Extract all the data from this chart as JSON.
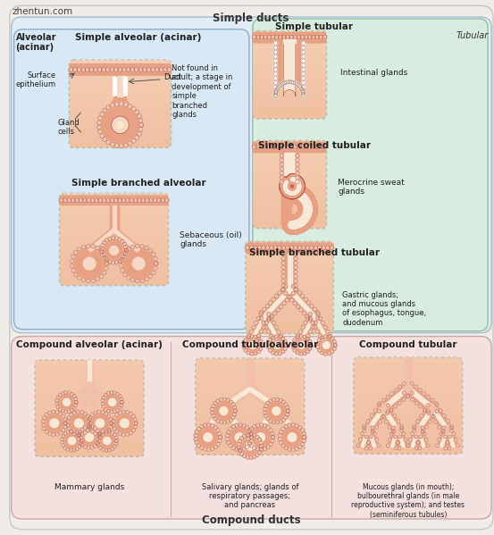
{
  "title": "Simple ducts",
  "title_bottom": "Compound ducts",
  "watermark": "zhentun.com",
  "bg_color": "#f0ede8",
  "top_section_bg": "#e2ecf5",
  "top_left_bg": "#d8e8f5",
  "top_right_bg": "#d8ecdf",
  "bottom_section_bg": "#f5e0e0",
  "tubular_label": "Tubular",
  "alveolar_label": "Alveolar\n(acinar)",
  "sections": {
    "simple_alveolar": {
      "title": "Simple alveolar (acinar)",
      "note": "Not found in\nadult; a stage in\ndevelopment of\nsimple\nbranched\nglands",
      "label_surface": "Surface\nepithelium",
      "label_duct": "Duct",
      "label_gland": "Gland\ncells"
    },
    "simple_branched_alveolar": {
      "title": "Simple branched alveolar",
      "example": "Sebaceous (oil)\nglands"
    },
    "simple_tubular": {
      "title": "Simple tubular",
      "example": "Intestinal glands"
    },
    "simple_coiled_tubular": {
      "title": "Simple coiled tubular",
      "example": "Merocrine sweat\nglands"
    },
    "simple_branched_tubular": {
      "title": "Simple branched tubular",
      "example": "Gastric glands;\nand mucous glands\nof esophagus, tongue,\nduodenum"
    },
    "compound_alveolar": {
      "title": "Compound alveolar (acinar)",
      "example": "Mammary glands"
    },
    "compound_tubuloalveolar": {
      "title": "Compound tubuloalveolar",
      "example": "Salivary glands; glands of\nrespiratory passages;\nand pancreas"
    },
    "compound_tubular": {
      "title": "Compound tubular",
      "example": "Mucous glands (in mouth);\nbulbourethral glands (in male\nreproductive system); and testes\n(seminiferous tubules)"
    }
  },
  "gland_fill": "#e8a080",
  "gland_dark": "#d07060",
  "gland_border": "#c06050",
  "gland_light": "#f0c0a8",
  "duct_fill": "#f5d8c5",
  "duct_inner": "#f8e8d8",
  "box_bg": "#f0c8b0",
  "box_bg2": "#ecc0a8",
  "dotted_color": "#ddddcc",
  "cell_dot": "#e0b898",
  "light_skin": "#f2c0a8",
  "bg_box": "#f8e8d8"
}
